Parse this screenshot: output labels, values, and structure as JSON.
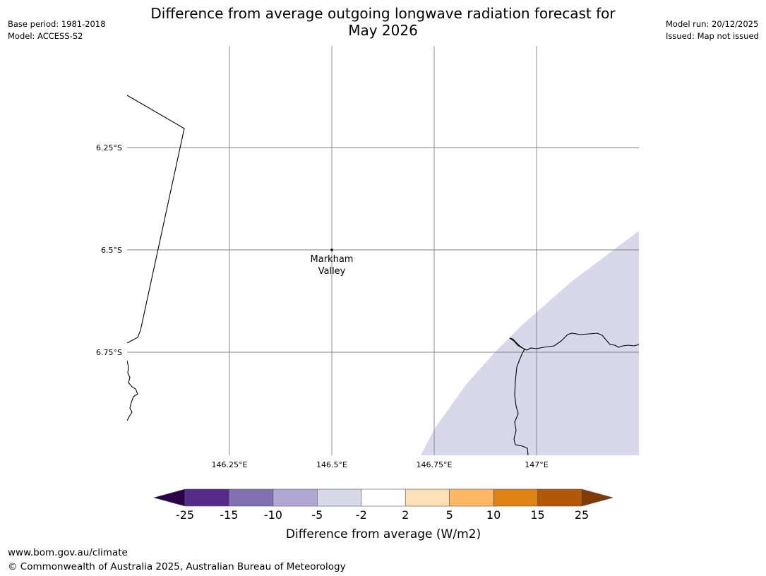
{
  "header": {
    "title_line1": "Difference from average outgoing longwave radiation forecast for",
    "title_line2": "May 2026",
    "base_period": "Base period: 1981-2018",
    "model": "Model: ACCESS-S2",
    "model_run": "Model run: 20/12/2025",
    "issued": "Issued: Map not issued"
  },
  "map": {
    "lat_ticks": [
      "6.25°S",
      "6.5°S",
      "6.75°S"
    ],
    "lon_ticks": [
      "146.25°E",
      "146.5°E",
      "146.75°E",
      "147°E"
    ],
    "location": {
      "name_line1": "Markham",
      "name_line2": "Valley",
      "lat": -6.5,
      "lon": 146.5
    },
    "extent": {
      "lon_min": 146.0,
      "lon_max": 147.25,
      "lat_min": -7.0,
      "lat_max": -6.0
    }
  },
  "colorbar": {
    "label": "Difference from average (W/m2)",
    "ticks": [
      "-25",
      "-15",
      "-10",
      "-5",
      "-2",
      "2",
      "5",
      "10",
      "15",
      "25"
    ],
    "bins": [
      "#582a8a",
      "#8271b0",
      "#b0a8d2",
      "#d8d8ea",
      "#ffffff",
      "#fee0b6",
      "#fdb863",
      "#e08214",
      "#b35806"
    ],
    "under_color": "#2d004b",
    "over_color": "#7f3b08"
  },
  "footer": {
    "url": "www.bom.gov.au/climate",
    "copyright": "© Commonwealth of Australia 2025, Australian Bureau of Meteorology"
  },
  "colors": {
    "anomaly_fill": "#d8d8ea",
    "grid": "#808080",
    "coast": "#000000"
  }
}
